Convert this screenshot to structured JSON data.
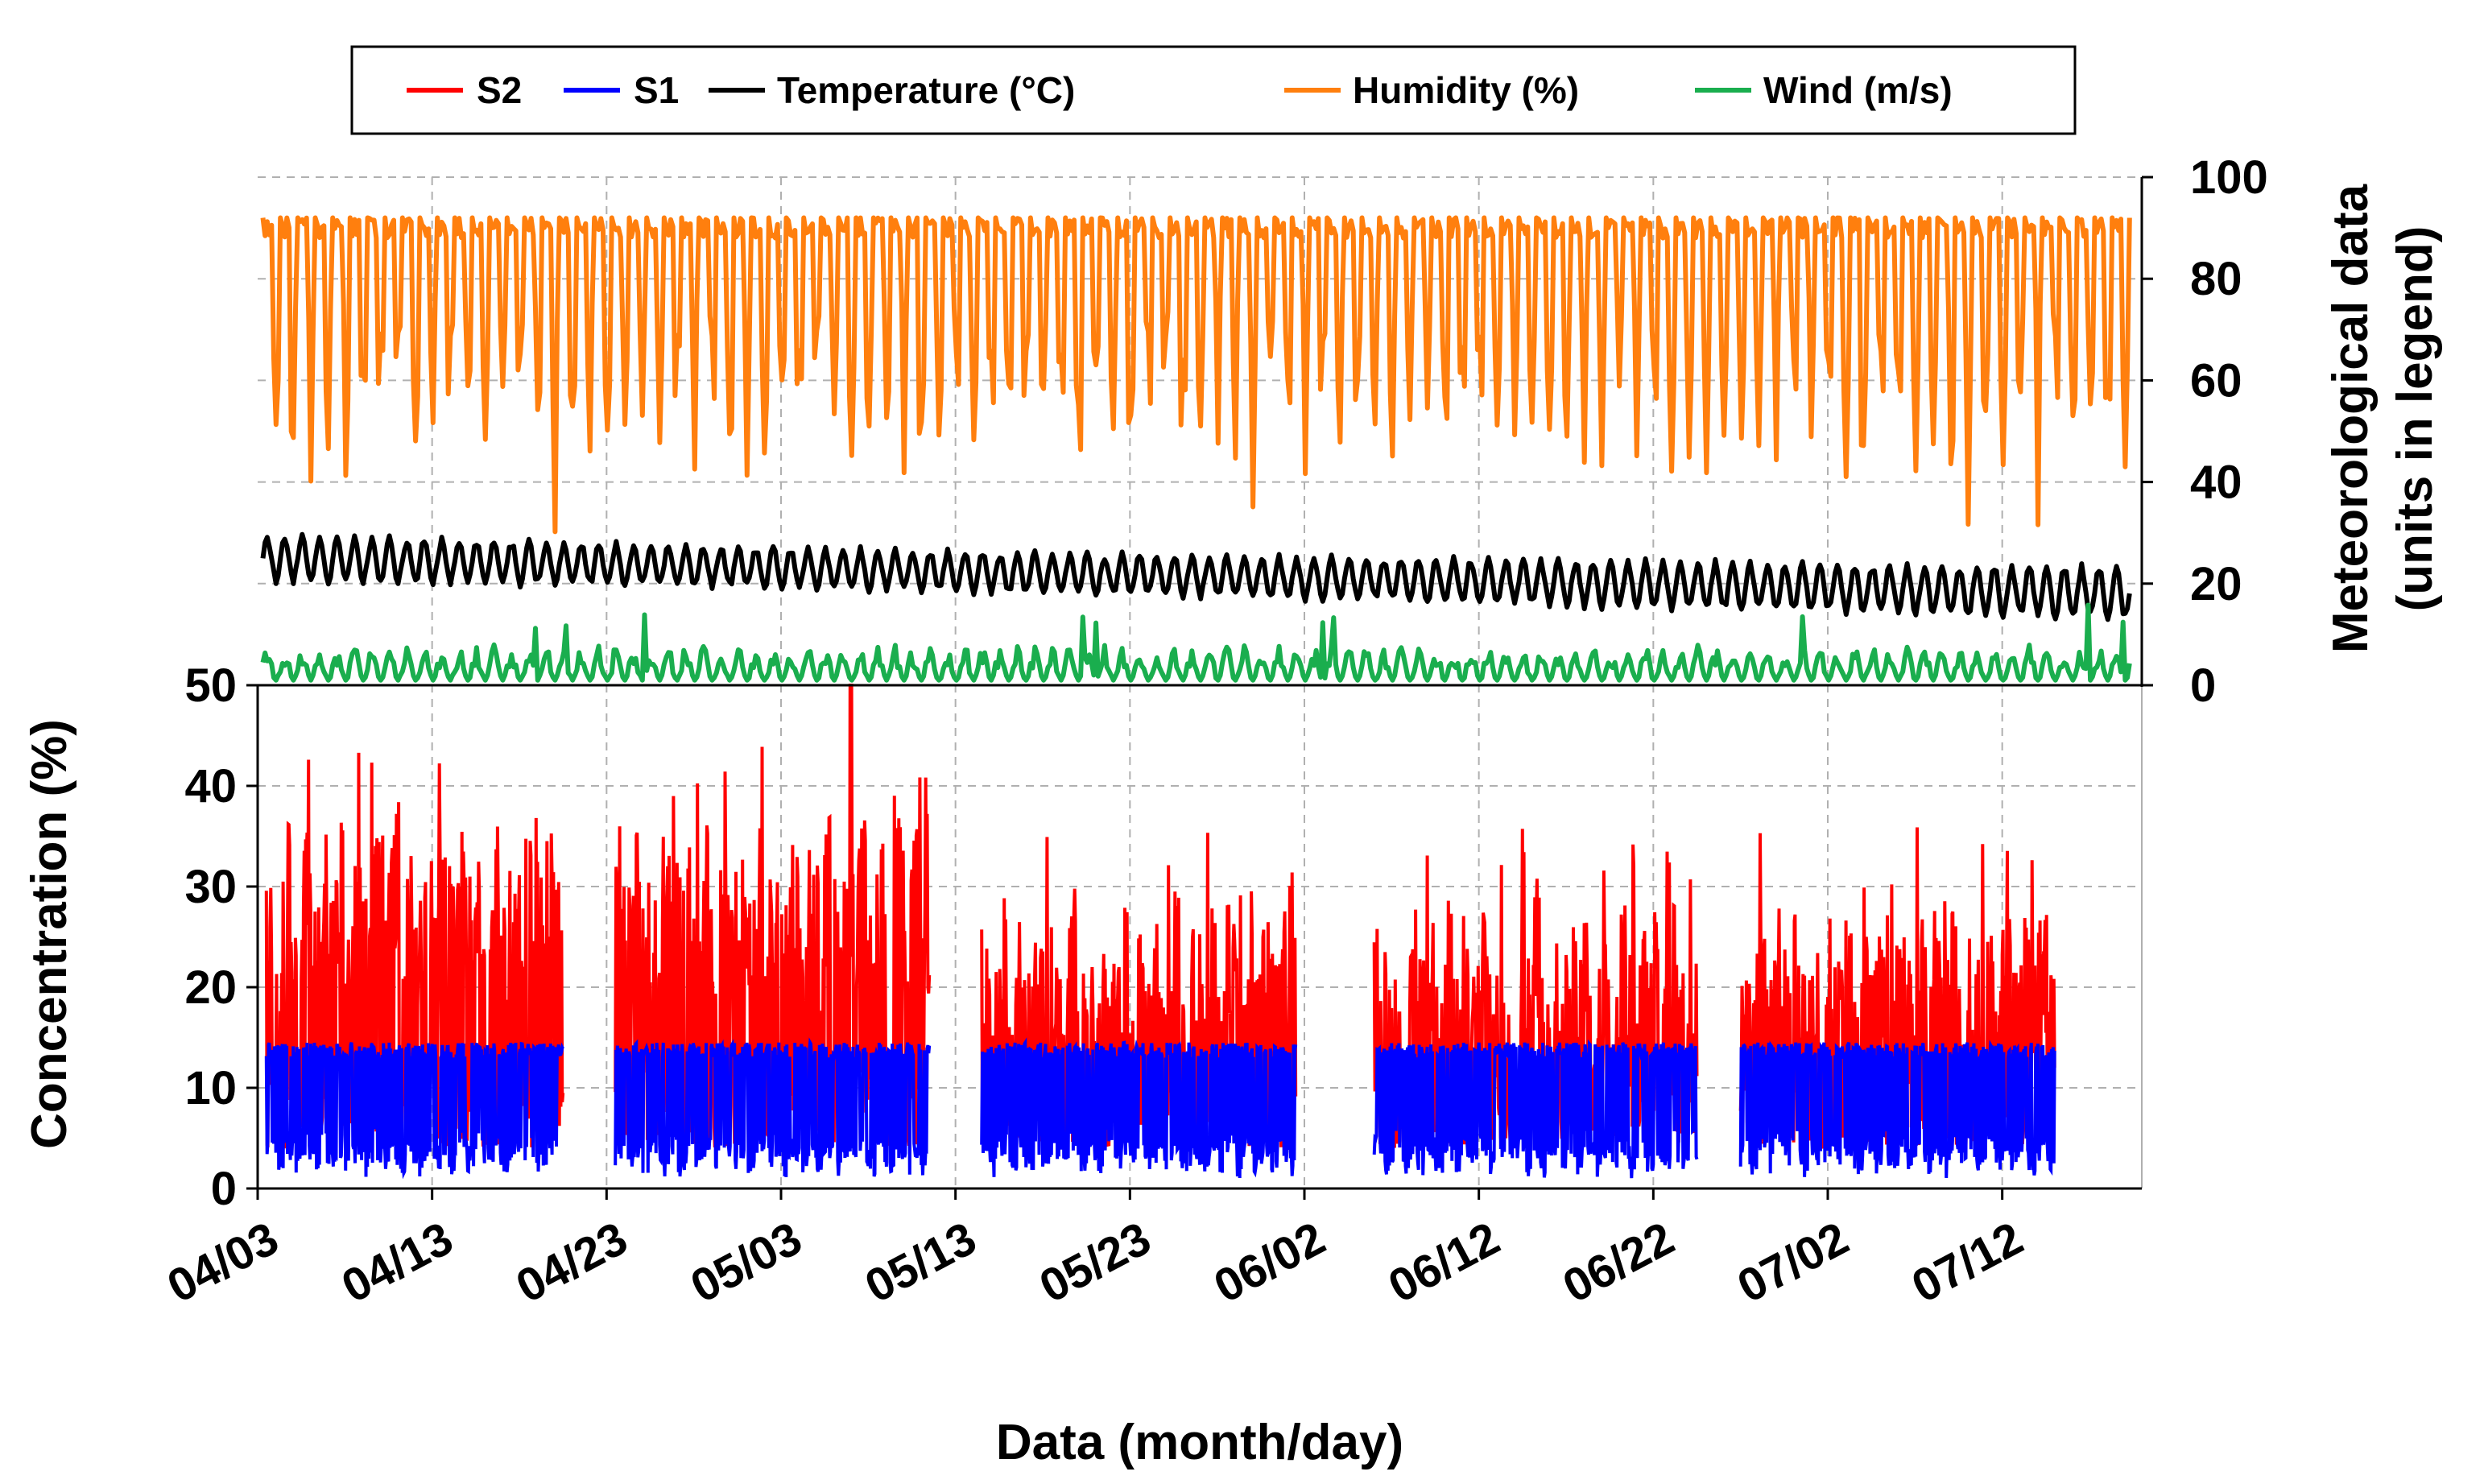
{
  "chart_data": {
    "type": "line",
    "xlabel": "Data (month/day)",
    "x_tick_labels": [
      "04/03",
      "04/13",
      "04/23",
      "05/03",
      "05/13",
      "05/23",
      "06/02",
      "06/12",
      "06/22",
      "07/02",
      "07/12"
    ],
    "x_range_days": [
      0,
      108
    ],
    "legend": {
      "position": "top-center",
      "entries": [
        {
          "key": "S2",
          "label": "S2",
          "color": "#ff0000"
        },
        {
          "key": "S1",
          "label": "S1",
          "color": "#0000ff"
        },
        {
          "key": "temperature",
          "label": "Temperature (°C)",
          "color": "#000000"
        },
        {
          "key": "humidity",
          "label": "Humidity (%)",
          "color": "#ff7f0e"
        },
        {
          "key": "wind",
          "label": "Wind (m/s)",
          "color": "#1aae4e"
        }
      ]
    },
    "panels": [
      {
        "name": "meteorological",
        "ylabel_line1": "Meteorological data",
        "ylabel_line2": "(units in legend)",
        "y_axis_side": "right",
        "ylim": [
          0,
          100
        ],
        "y_ticks": [
          0,
          20,
          40,
          60,
          80,
          100
        ],
        "series": [
          {
            "key": "humidity",
            "name": "Humidity (%)",
            "daily_max": 92,
            "daily_min_typical": 55,
            "daily_min_extreme": 27
          },
          {
            "key": "temperature",
            "name": "Temperature (°C)",
            "start_daily_range": [
              20,
              30
            ],
            "mid_daily_range": [
              17,
              26
            ],
            "end_daily_range": [
              12,
              24
            ]
          },
          {
            "key": "wind",
            "name": "Wind (m/s)",
            "daily_range": [
              1,
              8
            ],
            "peak": 16
          }
        ]
      },
      {
        "name": "concentration",
        "ylabel": "Concentration (%)",
        "y_axis_side": "left",
        "ylim": [
          0,
          50
        ],
        "y_ticks": [
          0,
          10,
          20,
          30,
          40,
          50
        ],
        "segments_days": [
          [
            0.5,
            17.5
          ],
          [
            20.5,
            38.5
          ],
          [
            41.5,
            59.5
          ],
          [
            64,
            82.5
          ],
          [
            85,
            103
          ]
        ],
        "series": [
          {
            "key": "S2",
            "name": "S2",
            "typical_range": [
              12,
              32
            ],
            "peak": 50
          },
          {
            "key": "S1",
            "name": "S1",
            "typical_range": [
              5,
              13
            ],
            "min": 0
          }
        ]
      }
    ]
  }
}
